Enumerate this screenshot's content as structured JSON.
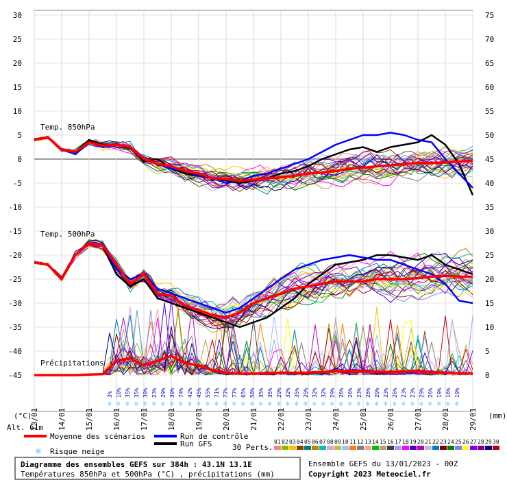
{
  "chart_data": {
    "type": "line",
    "title": "Diagramme des ensembles GEFS sur 384h : 43.1N 13.1E",
    "subtitle": "Températures 850hPa et 500hPa (°C) , précipitations (mm)",
    "run_info": "Ensemble GEFS du 13/01/2023 - 00Z",
    "copyright": "Copyright 2023 Meteociel.fr",
    "altitude": "Alt. 61m",
    "ylabel_left": "(°C)",
    "ylabel_right": "(mm)",
    "left_axis": {
      "ticks": [
        30,
        25,
        20,
        15,
        10,
        5,
        0,
        -5,
        -10,
        -15,
        -20,
        -25,
        -30,
        -35,
        -40,
        -45
      ],
      "range": [
        -45,
        30
      ]
    },
    "right_axis": {
      "ticks": [
        75,
        70,
        65,
        60,
        55,
        50,
        45,
        40,
        35,
        30,
        25,
        20,
        15,
        10,
        5,
        0
      ],
      "range": [
        0,
        75
      ]
    },
    "x_dates": [
      "13/01",
      "14/01",
      "15/01",
      "16/01",
      "17/01",
      "18/01",
      "19/01",
      "20/01",
      "21/01",
      "22/01",
      "23/01",
      "24/01",
      "25/01",
      "26/01",
      "27/01",
      "28/01",
      "29/01"
    ],
    "x_hours": [
      0,
      384
    ],
    "section_labels": {
      "t850": "Temp. 850hPa",
      "t500": "Temp. 500hPa",
      "precip": "Précipitations"
    },
    "mean_t850": [
      [
        0,
        4
      ],
      [
        12,
        4.5
      ],
      [
        24,
        2
      ],
      [
        36,
        1.5
      ],
      [
        48,
        3.5
      ],
      [
        60,
        2.8
      ],
      [
        72,
        3
      ],
      [
        84,
        2.5
      ],
      [
        96,
        0
      ],
      [
        108,
        -1
      ],
      [
        120,
        -1.5
      ],
      [
        132,
        -2.5
      ],
      [
        144,
        -3
      ],
      [
        156,
        -4
      ],
      [
        168,
        -4.2
      ],
      [
        180,
        -4.5
      ],
      [
        192,
        -4.3
      ],
      [
        204,
        -4
      ],
      [
        216,
        -3.8
      ],
      [
        228,
        -3.5
      ],
      [
        240,
        -3
      ],
      [
        252,
        -2.8
      ],
      [
        264,
        -2.5
      ],
      [
        276,
        -2
      ],
      [
        288,
        -1.8
      ],
      [
        300,
        -1.5
      ],
      [
        312,
        -1.3
      ],
      [
        324,
        -1
      ],
      [
        336,
        -0.8
      ],
      [
        348,
        -0.8
      ],
      [
        360,
        -0.7
      ],
      [
        372,
        -0.5
      ],
      [
        384,
        -0.3
      ]
    ],
    "gfs_t850": [
      [
        0,
        4
      ],
      [
        12,
        4.5
      ],
      [
        24,
        2
      ],
      [
        36,
        1.5
      ],
      [
        48,
        4
      ],
      [
        60,
        3
      ],
      [
        72,
        3
      ],
      [
        84,
        2.5
      ],
      [
        96,
        -0.5
      ],
      [
        108,
        0
      ],
      [
        120,
        -2
      ],
      [
        132,
        -3
      ],
      [
        144,
        -3.5
      ],
      [
        156,
        -4
      ],
      [
        168,
        -4.5
      ],
      [
        180,
        -5
      ],
      [
        192,
        -4.5
      ],
      [
        204,
        -4
      ],
      [
        216,
        -3
      ],
      [
        228,
        -2.5
      ],
      [
        240,
        -1.5
      ],
      [
        252,
        0
      ],
      [
        264,
        1
      ],
      [
        276,
        2
      ],
      [
        288,
        2.5
      ],
      [
        300,
        1.5
      ],
      [
        312,
        2.5
      ],
      [
        324,
        3
      ],
      [
        336,
        3.5
      ],
      [
        348,
        5
      ],
      [
        360,
        3
      ],
      [
        372,
        -1
      ],
      [
        384,
        -7.5
      ]
    ],
    "control_t850": [
      [
        0,
        4
      ],
      [
        12,
        4.5
      ],
      [
        24,
        2
      ],
      [
        36,
        1
      ],
      [
        48,
        3.5
      ],
      [
        60,
        2.5
      ],
      [
        72,
        3
      ],
      [
        84,
        2.5
      ],
      [
        96,
        0
      ],
      [
        108,
        -1
      ],
      [
        120,
        -2
      ],
      [
        132,
        -2.5
      ],
      [
        144,
        -3.5
      ],
      [
        156,
        -4
      ],
      [
        168,
        -5
      ],
      [
        180,
        -4.5
      ],
      [
        192,
        -3.5
      ],
      [
        204,
        -3
      ],
      [
        216,
        -2
      ],
      [
        228,
        -1
      ],
      [
        240,
        0
      ],
      [
        252,
        1.5
      ],
      [
        264,
        3
      ],
      [
        276,
        4
      ],
      [
        288,
        5
      ],
      [
        300,
        5
      ],
      [
        312,
        5.5
      ],
      [
        324,
        5
      ],
      [
        336,
        4
      ],
      [
        348,
        3.5
      ],
      [
        360,
        0
      ],
      [
        372,
        -3
      ],
      [
        384,
        -6
      ]
    ],
    "mean_t500": [
      [
        0,
        -21.5
      ],
      [
        12,
        -22
      ],
      [
        24,
        -25
      ],
      [
        36,
        -20
      ],
      [
        48,
        -17.5
      ],
      [
        60,
        -18
      ],
      [
        72,
        -22
      ],
      [
        84,
        -26
      ],
      [
        96,
        -24
      ],
      [
        108,
        -28
      ],
      [
        120,
        -28.5
      ],
      [
        132,
        -30.5
      ],
      [
        144,
        -31.5
      ],
      [
        156,
        -32.5
      ],
      [
        168,
        -33
      ],
      [
        180,
        -32
      ],
      [
        192,
        -30
      ],
      [
        204,
        -29
      ],
      [
        216,
        -28
      ],
      [
        228,
        -27
      ],
      [
        240,
        -26.5
      ],
      [
        252,
        -26
      ],
      [
        264,
        -25.5
      ],
      [
        276,
        -25.5
      ],
      [
        288,
        -25.5
      ],
      [
        300,
        -25
      ],
      [
        312,
        -25
      ],
      [
        324,
        -25
      ],
      [
        336,
        -24.8
      ],
      [
        348,
        -24.5
      ],
      [
        360,
        -24.3
      ],
      [
        372,
        -24.5
      ],
      [
        384,
        -24.5
      ]
    ],
    "gfs_t500": [
      [
        0,
        -21.5
      ],
      [
        12,
        -22
      ],
      [
        24,
        -25
      ],
      [
        36,
        -20
      ],
      [
        48,
        -17.5
      ],
      [
        60,
        -18
      ],
      [
        72,
        -24
      ],
      [
        84,
        -26.5
      ],
      [
        96,
        -25
      ],
      [
        108,
        -29
      ],
      [
        120,
        -30
      ],
      [
        132,
        -31
      ],
      [
        144,
        -32
      ],
      [
        156,
        -33
      ],
      [
        168,
        -34
      ],
      [
        180,
        -35
      ],
      [
        192,
        -34
      ],
      [
        204,
        -33
      ],
      [
        216,
        -31
      ],
      [
        228,
        -29
      ],
      [
        240,
        -26
      ],
      [
        252,
        -24
      ],
      [
        264,
        -22
      ],
      [
        276,
        -21.5
      ],
      [
        288,
        -21
      ],
      [
        300,
        -20
      ],
      [
        312,
        -20
      ],
      [
        324,
        -20.5
      ],
      [
        336,
        -21
      ],
      [
        348,
        -20
      ],
      [
        360,
        -22
      ],
      [
        372,
        -23
      ],
      [
        384,
        -24
      ]
    ],
    "control_t500": [
      [
        0,
        -21.5
      ],
      [
        12,
        -22
      ],
      [
        24,
        -25
      ],
      [
        36,
        -20
      ],
      [
        48,
        -17.5
      ],
      [
        60,
        -18
      ],
      [
        72,
        -23
      ],
      [
        84,
        -25
      ],
      [
        96,
        -24
      ],
      [
        108,
        -27
      ],
      [
        120,
        -28
      ],
      [
        132,
        -29
      ],
      [
        144,
        -30
      ],
      [
        156,
        -31
      ],
      [
        168,
        -32
      ],
      [
        180,
        -31
      ],
      [
        192,
        -29
      ],
      [
        204,
        -27
      ],
      [
        216,
        -25
      ],
      [
        228,
        -23
      ],
      [
        240,
        -22
      ],
      [
        252,
        -21
      ],
      [
        264,
        -20.5
      ],
      [
        276,
        -20
      ],
      [
        288,
        -20.5
      ],
      [
        300,
        -21
      ],
      [
        312,
        -21
      ],
      [
        324,
        -22
      ],
      [
        336,
        -23
      ],
      [
        348,
        -24
      ],
      [
        360,
        -26
      ],
      [
        372,
        -29.5
      ],
      [
        384,
        -30
      ]
    ],
    "mean_precip": [
      [
        0,
        0
      ],
      [
        36,
        0
      ],
      [
        60,
        0.2
      ],
      [
        72,
        3
      ],
      [
        84,
        3.5
      ],
      [
        96,
        2
      ],
      [
        108,
        3
      ],
      [
        120,
        4
      ],
      [
        132,
        2.5
      ],
      [
        144,
        2
      ],
      [
        156,
        1
      ],
      [
        168,
        0.5
      ],
      [
        180,
        0.3
      ],
      [
        192,
        0.3
      ],
      [
        216,
        0.5
      ],
      [
        240,
        0.5
      ],
      [
        264,
        0.8
      ],
      [
        288,
        0.8
      ],
      [
        312,
        0.6
      ],
      [
        336,
        0.8
      ],
      [
        360,
        0.5
      ],
      [
        384,
        0.3
      ]
    ],
    "snow_risk_percent": [
      "3%",
      "10%",
      "35%",
      "35%",
      "39%",
      "23%",
      "29%",
      "39%",
      "74%",
      "42%",
      "45%",
      "55%",
      "71%",
      "77%",
      "77%",
      "65%",
      "58%",
      "35%",
      "35%",
      "29%",
      "32%",
      "35%",
      "29%",
      "32%",
      "32%",
      "29%",
      "26%",
      "26%",
      "23%",
      "26%",
      "29%",
      "23%",
      "26%",
      "23%",
      "23%",
      "29%",
      "26%",
      "19%",
      "16%",
      "19%"
    ],
    "legend": {
      "mean": "Moyenne des scénarios",
      "control": "Run de contrôle",
      "gfs": "Run GFS",
      "snow": "Risque neige",
      "perts": "30 Perts.",
      "members": [
        "01",
        "02",
        "03",
        "04",
        "05",
        "06",
        "07",
        "08",
        "09",
        "10",
        "11",
        "12",
        "13",
        "14",
        "15",
        "16",
        "17",
        "18",
        "19",
        "20",
        "21",
        "22",
        "23",
        "24",
        "25",
        "26",
        "27",
        "28",
        "29",
        "30"
      ]
    },
    "colors": {
      "mean": "#ff0000",
      "control": "#0000ff",
      "gfs": "#000000",
      "snow": "#66ccff",
      "members": [
        "#ff8080",
        "#80c000",
        "#ffc000",
        "#804000",
        "#008080",
        "#c08000",
        "#00c0c0",
        "#e0a0e0",
        "#c0c040",
        "#a0c0ff",
        "#ff8000",
        "#808080",
        "#ffa0a0",
        "#00c000",
        "#c0a060",
        "#404040",
        "#a0a0ff",
        "#ff00ff",
        "#4000c0",
        "#c000c0",
        "#c0c0c0",
        "#0080c0",
        "#800000",
        "#008000",
        "#8080ff",
        "#ffff00",
        "#8000ff",
        "#800080",
        "#000080",
        "#c00000"
      ]
    }
  }
}
